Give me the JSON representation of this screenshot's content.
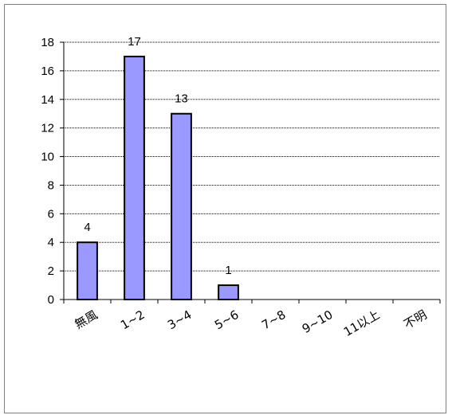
{
  "chart_data": {
    "type": "bar",
    "categories": [
      "無風",
      "1~2",
      "3~4",
      "5~6",
      "7~8",
      "9~10",
      "11以上",
      "不明"
    ],
    "values": [
      4,
      17,
      13,
      1,
      0,
      0,
      0,
      0
    ],
    "data_labels": [
      "4",
      "17",
      "13",
      "1",
      "",
      "",
      "",
      ""
    ],
    "ylim": [
      0,
      18
    ],
    "yticks": [
      0,
      2,
      4,
      6,
      8,
      10,
      12,
      14,
      16,
      18
    ],
    "grid": true,
    "bar_color": "#9999ff",
    "bar_edge_color": "#000000",
    "grid_color": "#000000"
  }
}
